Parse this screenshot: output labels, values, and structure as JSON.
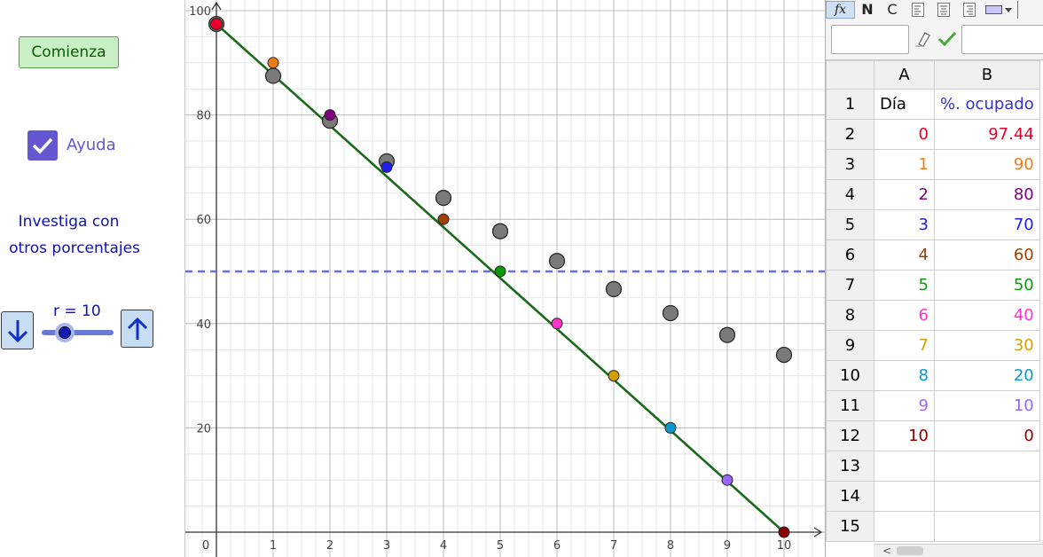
{
  "controls": {
    "start_label": "Comienza",
    "help_label": "Ayuda",
    "help_checked": true,
    "investigate_line1": "Investiga con",
    "investigate_line2": "otros porcentajes",
    "slider_label": "r = 10",
    "slider_value": 10,
    "down_icon": "arrow-down-icon",
    "up_icon": "arrow-up-icon"
  },
  "spreadsheet_toolbar": {
    "fx_label": "fx",
    "bold_label": "N",
    "italic_label": "C",
    "icons": [
      "align-left-icon",
      "align-center-icon",
      "align-right-icon",
      "fill-color-icon"
    ]
  },
  "spreadsheet": {
    "col_headers": [
      "A",
      "B"
    ],
    "row_headers": [
      "1",
      "2",
      "3",
      "4",
      "5",
      "6",
      "7",
      "8",
      "9",
      "10",
      "11",
      "12",
      "13",
      "14",
      "15"
    ],
    "title_row": {
      "a": "Día",
      "b": "%. ocupado"
    },
    "rows": [
      {
        "a": "0",
        "b": "97.44",
        "color": "#e8002a"
      },
      {
        "a": "1",
        "b": "90",
        "color": "#f07a10"
      },
      {
        "a": "2",
        "b": "80",
        "color": "#800080"
      },
      {
        "a": "3",
        "b": "70",
        "color": "#2020ee"
      },
      {
        "a": "4",
        "b": "60",
        "color": "#a04000"
      },
      {
        "a": "5",
        "b": "50",
        "color": "#0a9a0a"
      },
      {
        "a": "6",
        "b": "40",
        "color": "#ff33cc"
      },
      {
        "a": "7",
        "b": "30",
        "color": "#d4a000"
      },
      {
        "a": "8",
        "b": "20",
        "color": "#0a99cc"
      },
      {
        "a": "9",
        "b": "10",
        "color": "#9966ff"
      },
      {
        "a": "10",
        "b": "0",
        "color": "#8b0000"
      }
    ]
  },
  "chart_data": {
    "type": "scatter",
    "x_ticks": [
      0,
      1,
      2,
      3,
      4,
      5,
      6,
      7,
      8,
      9,
      10
    ],
    "y_ticks": [
      20,
      40,
      60,
      80,
      100
    ],
    "xlim": [
      -0.5,
      10.7
    ],
    "ylim": [
      -4,
      102
    ],
    "grid": true,
    "reference_line_y": 50,
    "line": {
      "x": [
        0,
        10
      ],
      "y": [
        97.44,
        0
      ],
      "color": "#1a6a1a"
    },
    "colored_points": [
      {
        "x": 0,
        "y": 97.44,
        "color": "#e8002a"
      },
      {
        "x": 1,
        "y": 90,
        "color": "#f07a10"
      },
      {
        "x": 2,
        "y": 80,
        "color": "#800080"
      },
      {
        "x": 3,
        "y": 70,
        "color": "#2020ee"
      },
      {
        "x": 4,
        "y": 60,
        "color": "#a04000"
      },
      {
        "x": 5,
        "y": 50,
        "color": "#0a9a0a"
      },
      {
        "x": 6,
        "y": 40,
        "color": "#ff33cc"
      },
      {
        "x": 7,
        "y": 30,
        "color": "#d4a000"
      },
      {
        "x": 8,
        "y": 20,
        "color": "#0a99cc"
      },
      {
        "x": 9,
        "y": 10,
        "color": "#9966ff"
      },
      {
        "x": 10,
        "y": 0,
        "color": "#8b0000"
      }
    ],
    "gray_points": [
      {
        "x": 0,
        "y": 97.44
      },
      {
        "x": 1,
        "y": 87.5
      },
      {
        "x": 2,
        "y": 78.9
      },
      {
        "x": 3,
        "y": 71.1
      },
      {
        "x": 4,
        "y": 64.1
      },
      {
        "x": 5,
        "y": 57.7
      },
      {
        "x": 6,
        "y": 52.0
      },
      {
        "x": 7,
        "y": 46.6
      },
      {
        "x": 8,
        "y": 42.0
      },
      {
        "x": 9,
        "y": 37.8
      },
      {
        "x": 10,
        "y": 34.0
      }
    ]
  }
}
